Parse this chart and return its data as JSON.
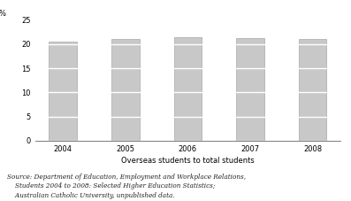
{
  "categories": [
    "2004",
    "2005",
    "2006",
    "2007",
    "2008"
  ],
  "values": [
    20.5,
    21.0,
    21.4,
    21.2,
    21.0
  ],
  "bar_color": "#c8c8c8",
  "bar_edgecolor": "#999999",
  "xlabel": "Overseas students to total students",
  "ylabel": "%",
  "ylim": [
    0,
    25
  ],
  "yticks": [
    0,
    5,
    10,
    15,
    20,
    25
  ],
  "grid_color": "#ffffff",
  "axis_fontsize": 6.0,
  "tick_fontsize": 6.0,
  "source_line1": "Source: Department of Education, Employment and Workplace Relations,",
  "source_line2": "    Students 2004 to 2008: Selected Higher Education Statistics;",
  "source_line3": "    Australian Catholic University, unpublished data.",
  "source_fontsize": 5.2,
  "background_color": "#ffffff",
  "bar_width": 0.45
}
